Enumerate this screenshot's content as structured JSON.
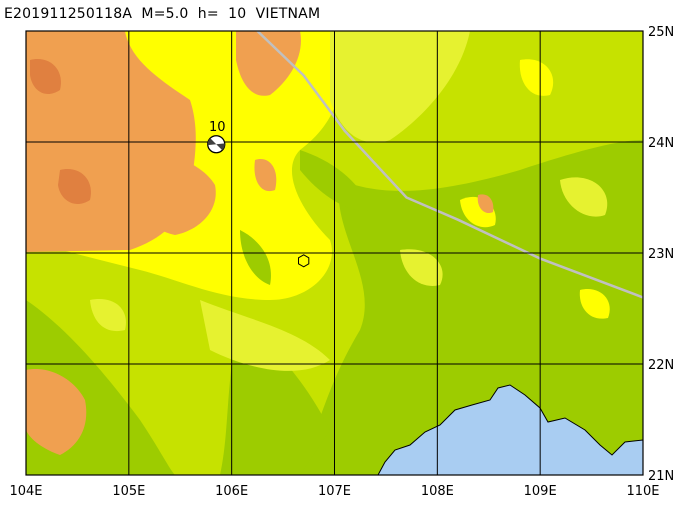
{
  "header": {
    "title": "E201911250118A  M=5.0  h=  10  VIETNAM"
  },
  "map": {
    "lon_range": [
      104,
      110
    ],
    "lat_range": [
      21,
      25
    ],
    "lon_ticks": [
      "104E",
      "105E",
      "106E",
      "107E",
      "108E",
      "109E",
      "110E"
    ],
    "lat_ticks": [
      "25N",
      "24N",
      "23N",
      "22N",
      "21N"
    ],
    "colors": {
      "sea": "#a9cdf2",
      "lowland": "#9dcc00",
      "low_hills": "#c6e200",
      "hills": "#e6f230",
      "uplands": "#ffff00",
      "mountains": "#f0a050",
      "peaks": "#e08040",
      "border": "#c0c0c0",
      "grid": "#000000"
    }
  },
  "event": {
    "label": "10",
    "lon": 105.85,
    "lat": 23.98
  },
  "station": {
    "lon": 106.7,
    "lat": 22.93
  },
  "border_line": [
    [
      106.25,
      25
    ],
    [
      106.7,
      24.6
    ],
    [
      107.1,
      24.1
    ],
    [
      107.7,
      23.5
    ],
    [
      108.2,
      23.3
    ],
    [
      109,
      22.95
    ],
    [
      110,
      22.6
    ]
  ]
}
